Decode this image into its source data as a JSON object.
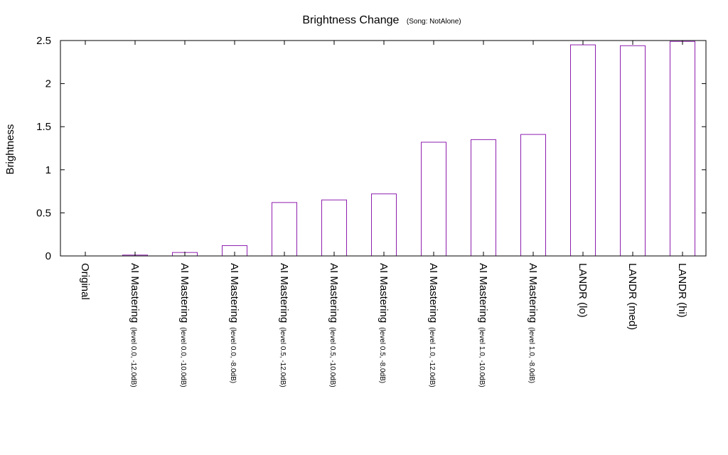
{
  "chart_data": {
    "type": "bar",
    "title": "Brightness Change",
    "subtitle": "(Song: NotAlone)",
    "xlabel": "",
    "ylabel": "Brightness",
    "ylim": [
      0,
      2.5
    ],
    "yticks": [
      "0",
      "0.5",
      "1",
      "1.5",
      "2",
      "2.5"
    ],
    "grid": false,
    "bar_color": "#8e1fae",
    "categories": [
      {
        "main": "Original",
        "sub": ""
      },
      {
        "main": "AI Mastering",
        "sub": "(level 0.0, -12.0dB)"
      },
      {
        "main": "AI Mastering",
        "sub": "(level 0.0, -10.0dB)"
      },
      {
        "main": "AI Mastering",
        "sub": "(level 0.0, -8.0dB)"
      },
      {
        "main": "AI Mastering",
        "sub": "(level 0.5, -12.0dB)"
      },
      {
        "main": "AI Mastering",
        "sub": "(level 0.5, -10.0dB)"
      },
      {
        "main": "AI Mastering",
        "sub": "(level 0.5, -8.0dB)"
      },
      {
        "main": "AI Mastering",
        "sub": "(level 1.0, -12.0dB)"
      },
      {
        "main": "AI Mastering",
        "sub": "(level 1.0, -10.0dB)"
      },
      {
        "main": "AI Mastering",
        "sub": "(level 1.0, -8.0dB)"
      },
      {
        "main": "LANDR (lo)",
        "sub": ""
      },
      {
        "main": "LANDR (med)",
        "sub": ""
      },
      {
        "main": "LANDR (hi)",
        "sub": ""
      }
    ],
    "values": [
      0,
      0.01,
      0.04,
      0.12,
      0.62,
      0.65,
      0.72,
      1.32,
      1.35,
      1.41,
      2.45,
      2.44,
      2.49
    ]
  }
}
